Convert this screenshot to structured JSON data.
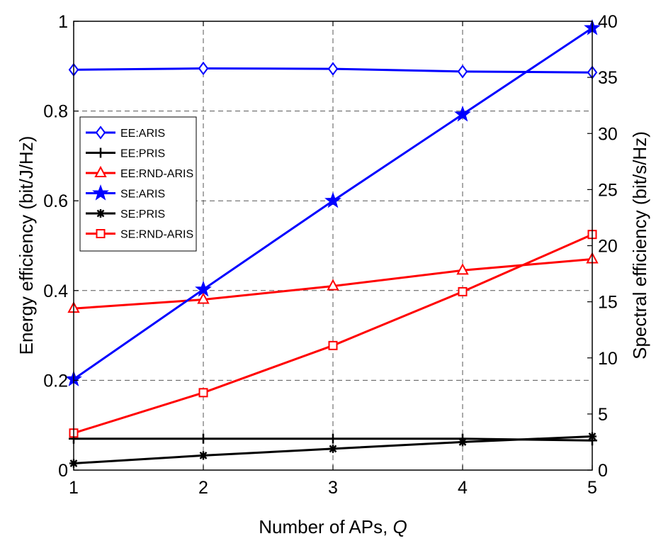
{
  "chart_data": {
    "type": "line",
    "title": "",
    "xlabel": "Number of APs, ",
    "xlabel_var": "Q",
    "ylabel_left": "Energy efficiency (bit/J/Hz)",
    "ylabel_right": "Spectral efficiency (bit/s/Hz)",
    "x": [
      1,
      2,
      3,
      4,
      5
    ],
    "xticks": [
      "1",
      "2",
      "3",
      "4",
      "5"
    ],
    "xlim": [
      1,
      5
    ],
    "ylim_left": [
      0,
      1
    ],
    "yticks_left": [
      "0",
      "0.2",
      "0.4",
      "0.6",
      "0.8",
      "1"
    ],
    "ylim_right": [
      0,
      40
    ],
    "yticks_right": [
      "0",
      "5",
      "10",
      "15",
      "20",
      "25",
      "30",
      "35",
      "40"
    ],
    "grid": true,
    "legend_position": "upper-left",
    "series": [
      {
        "name": "EE:ARIS",
        "axis": "left",
        "color": "#0000ff",
        "marker": "diamond",
        "values": [
          0.892,
          0.895,
          0.894,
          0.888,
          0.886
        ]
      },
      {
        "name": "EE:PRIS",
        "axis": "left",
        "color": "#000000",
        "marker": "plus",
        "values": [
          0.07,
          0.07,
          0.07,
          0.07,
          0.066
        ]
      },
      {
        "name": "EE:RND-ARIS",
        "axis": "left",
        "color": "#ff0000",
        "marker": "triangle",
        "values": [
          0.36,
          0.38,
          0.41,
          0.445,
          0.47
        ]
      },
      {
        "name": "SE:ARIS",
        "axis": "right",
        "color": "#0000ff",
        "marker": "star",
        "values": [
          8.1,
          16.1,
          24.0,
          31.7,
          39.4
        ]
      },
      {
        "name": "SE:PRIS",
        "axis": "right",
        "color": "#000000",
        "marker": "asterisk",
        "values": [
          0.6,
          1.3,
          1.9,
          2.5,
          3.0
        ]
      },
      {
        "name": "SE:RND-ARIS",
        "axis": "right",
        "color": "#ff0000",
        "marker": "square",
        "values": [
          3.3,
          6.9,
          11.1,
          15.9,
          21.0
        ]
      }
    ]
  }
}
